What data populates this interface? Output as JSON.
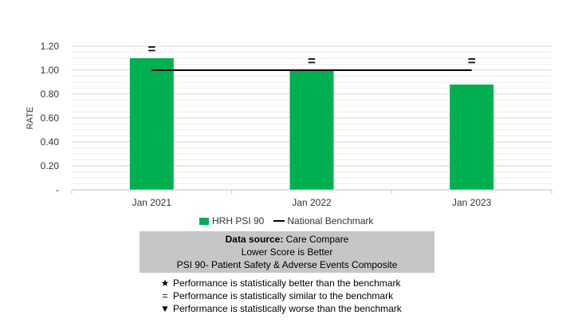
{
  "chart_data": {
    "type": "bar",
    "categories": [
      "Jan 2021",
      "Jan 2022",
      "Jan 2023"
    ],
    "series": [
      {
        "name": "HRH PSI 90",
        "type": "bar",
        "color": "#00B050",
        "values": [
          1.1,
          1.0,
          0.88
        ]
      },
      {
        "name": "National Benchmark",
        "type": "line",
        "color": "#000000",
        "values": [
          1.0,
          1.0,
          1.0
        ]
      }
    ],
    "performance_markers": [
      "=",
      "=",
      "="
    ],
    "ylabel": "RATE",
    "ylim": [
      0,
      1.2
    ],
    "y_ticks": [
      "-",
      "0.20",
      "0.40",
      "0.60",
      "0.80",
      "1.00",
      "1.20"
    ],
    "grid": true,
    "legend_position": "bottom"
  },
  "info_box": {
    "source_label": "Data source:",
    "source_value": " Care Compare",
    "line2": "Lower Score is Better",
    "line3": "PSI 90- Patient Safety & Adverse Events Composite"
  },
  "notes": [
    {
      "icon": "star-icon",
      "symbol": "★",
      "text": "Performance is statistically better than the benchmark"
    },
    {
      "icon": "equals-icon",
      "symbol": "=",
      "text": "Performance is statistically similar to the benchmark"
    },
    {
      "icon": "down-triangle-icon",
      "symbol": "▼",
      "text": "Performance is statistically worse than the benchmark"
    }
  ]
}
